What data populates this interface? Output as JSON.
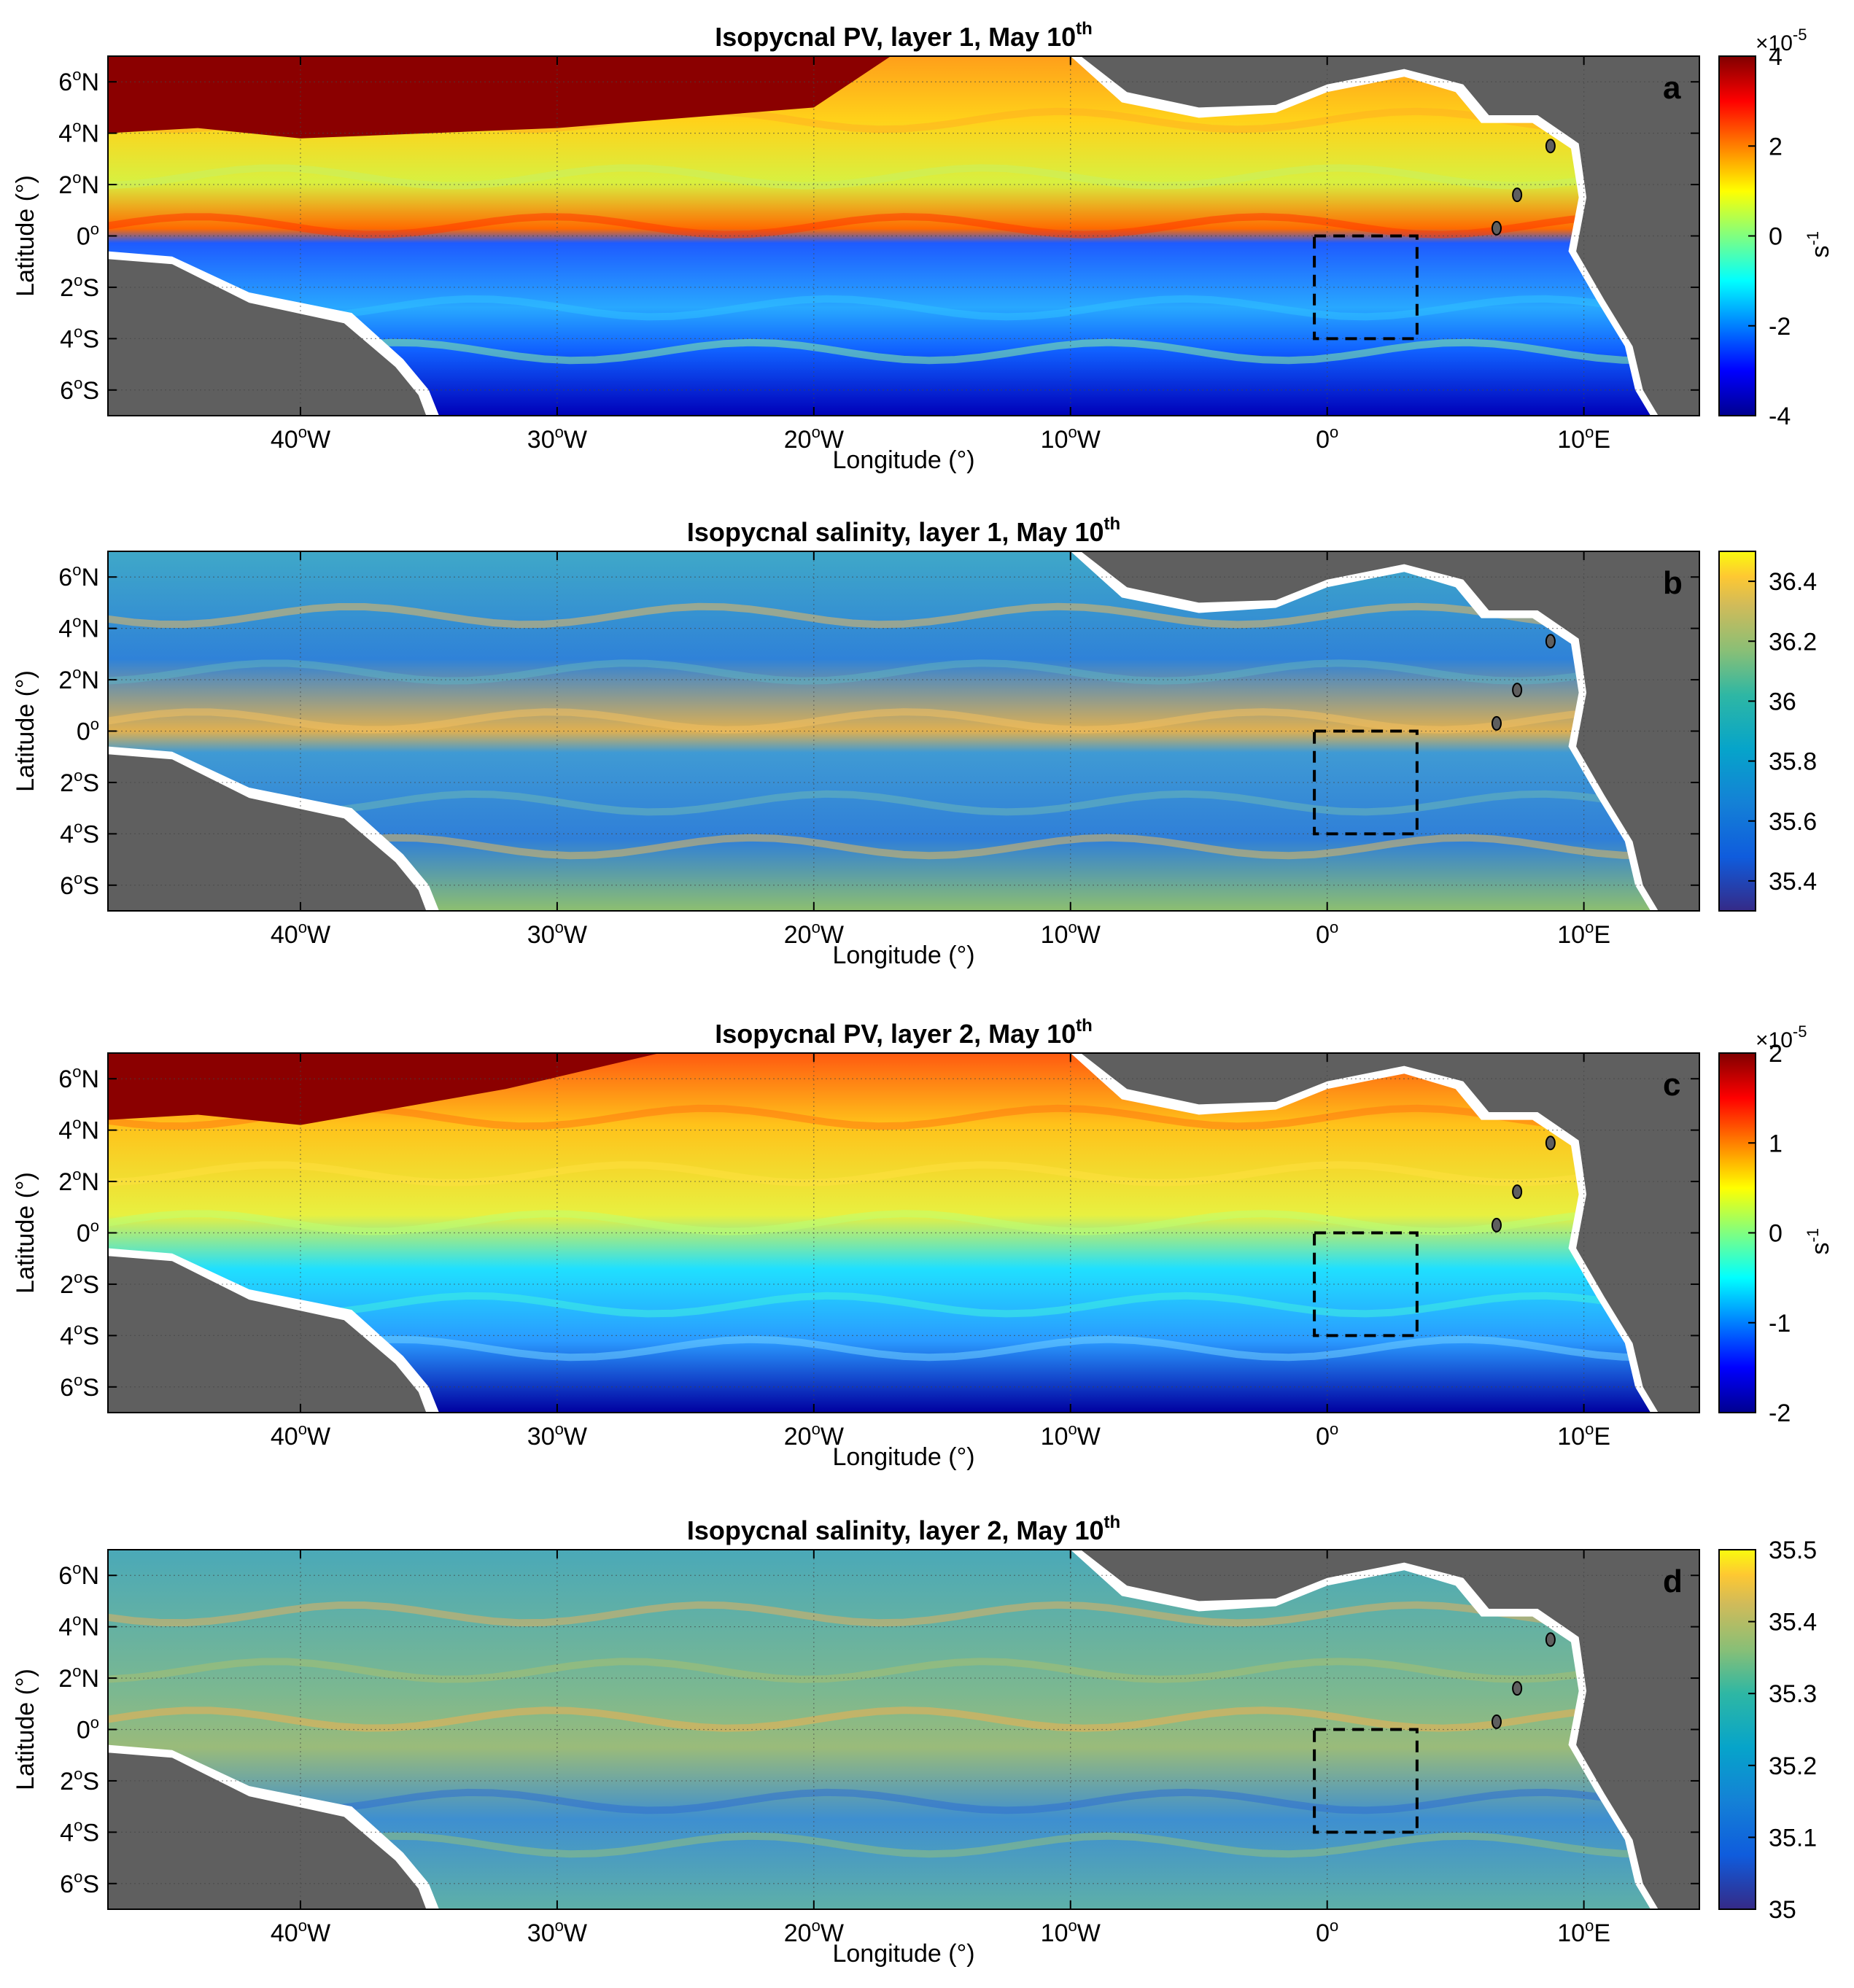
{
  "xlabel": "Longitude (°)",
  "ylabel": "Latitude (°)",
  "lon_ticks": [
    "40",
    "30",
    "20",
    "10",
    "0",
    "10"
  ],
  "lon_suffix": [
    "W",
    "W",
    "W",
    "W",
    "",
    "E"
  ],
  "lat_ticks": [
    "6",
    "4",
    "2",
    "0",
    "2",
    "4",
    "6"
  ],
  "lat_suffix": [
    "N",
    "N",
    "N",
    "",
    "S",
    "S",
    "S"
  ],
  "deg": "o",
  "lon_tick_values": [
    -40,
    -30,
    -20,
    -10,
    0,
    10
  ],
  "lat_tick_values": [
    6,
    4,
    2,
    0,
    -2,
    -4,
    -6
  ],
  "box_lon": [
    -0.5,
    3.5
  ],
  "box_lat": [
    -4,
    0
  ],
  "panels": [
    {
      "letter": "a",
      "title": "Isopycnal PV, layer 1, May 10",
      "sup": "th",
      "cb_ticks": [
        "4",
        "2",
        "0",
        "-2",
        "-4"
      ],
      "cb_exp": "×10",
      "cb_exp_sup": "-5",
      "cb_unit": "s",
      "cb_unit_sup": "-1",
      "colormap": "jet"
    },
    {
      "letter": "b",
      "title": "Isopycnal salinity, layer 1, May 10",
      "sup": "th",
      "cb_ticks": [
        "36.4",
        "36.2",
        "36",
        "35.8",
        "35.6",
        "35.4"
      ],
      "colormap": "parula"
    },
    {
      "letter": "c",
      "title": "Isopycnal PV, layer 2, May 10",
      "sup": "th",
      "cb_ticks": [
        "2",
        "1",
        "0",
        "-1",
        "-2"
      ],
      "cb_exp": "×10",
      "cb_exp_sup": "-5",
      "cb_unit": "s",
      "cb_unit_sup": "-1",
      "colormap": "jet"
    },
    {
      "letter": "d",
      "title": "Isopycnal salinity, layer 2, May 10",
      "sup": "th",
      "cb_ticks": [
        "35.5",
        "35.4",
        "35.3",
        "35.2",
        "35.1",
        "35"
      ],
      "colormap": "parula"
    }
  ],
  "colors": {
    "land": "#5f5f5f",
    "coast": "#ffffff"
  }
}
